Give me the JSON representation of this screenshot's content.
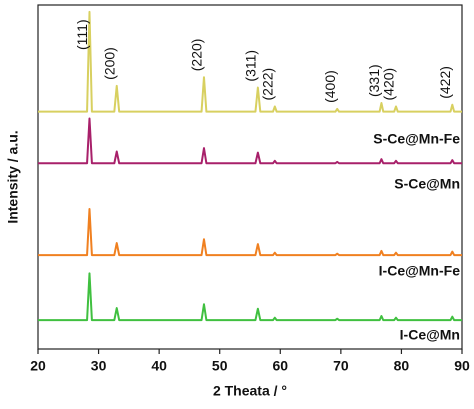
{
  "chart_data": {
    "type": "line",
    "x_label": "2 Theata / °",
    "y_label": "Intensity / a.u.",
    "xlim": [
      20,
      90
    ],
    "xticks": [
      20,
      30,
      40,
      50,
      60,
      70,
      80,
      90
    ],
    "ylim": [
      0,
      100
    ],
    "peak_labels": [
      "(111)",
      "(200)",
      "(220)",
      "(311)",
      "(222)",
      "(400)",
      "(331)",
      "(420)",
      "(422)"
    ],
    "x": [
      20,
      28.1,
      28.5,
      28.9,
      32.6,
      33.0,
      33.4,
      47.0,
      47.4,
      47.8,
      55.9,
      56.3,
      56.7,
      58.8,
      59.1,
      59.4,
      69.1,
      69.4,
      69.7,
      76.4,
      76.7,
      77.0,
      78.8,
      79.1,
      79.4,
      88.1,
      88.4,
      88.7,
      90
    ],
    "series": [
      {
        "name": "S-Ce@Mn-Fe",
        "color": "#d8d060",
        "values": [
          69,
          69,
          98,
          69,
          69,
          76.5,
          69,
          69,
          79,
          69,
          69,
          76,
          69,
          69,
          70.5,
          69,
          69,
          69.8,
          69,
          69,
          71.5,
          69,
          69,
          70.5,
          69,
          69,
          71,
          69,
          69
        ]
      },
      {
        "name": "S-Ce@Mn",
        "color": "#a8206a",
        "values": [
          54,
          54,
          67,
          54,
          54,
          57.4,
          54,
          54,
          58.4,
          54,
          54,
          57.1,
          54,
          54,
          54.7,
          54,
          54,
          54.4,
          54,
          54,
          55.2,
          54,
          54,
          54.7,
          54,
          54,
          54.9,
          54,
          54
        ]
      },
      {
        "name": "I-Ce@Mn-Fe",
        "color": "#f08020",
        "values": [
          27.3,
          27.3,
          40.7,
          27.3,
          27.3,
          30.8,
          27.3,
          27.3,
          31.9,
          27.3,
          27.3,
          30.5,
          27.3,
          27.3,
          28,
          27.3,
          27.3,
          27.7,
          27.3,
          27.3,
          28.5,
          27.3,
          27.3,
          28,
          27.3,
          27.3,
          28.3,
          27.3,
          27.3
        ]
      },
      {
        "name": "I-Ce@Mn",
        "color": "#40c040",
        "values": [
          8.4,
          8.4,
          22,
          8.4,
          8.4,
          11.9,
          8.4,
          8.4,
          13,
          8.4,
          8.4,
          11.7,
          8.4,
          8.4,
          9.1,
          8.4,
          8.4,
          8.8,
          8.4,
          8.4,
          9.6,
          8.4,
          8.4,
          9.1,
          8.4,
          8.4,
          9.4,
          8.4,
          8.4
        ]
      }
    ]
  }
}
